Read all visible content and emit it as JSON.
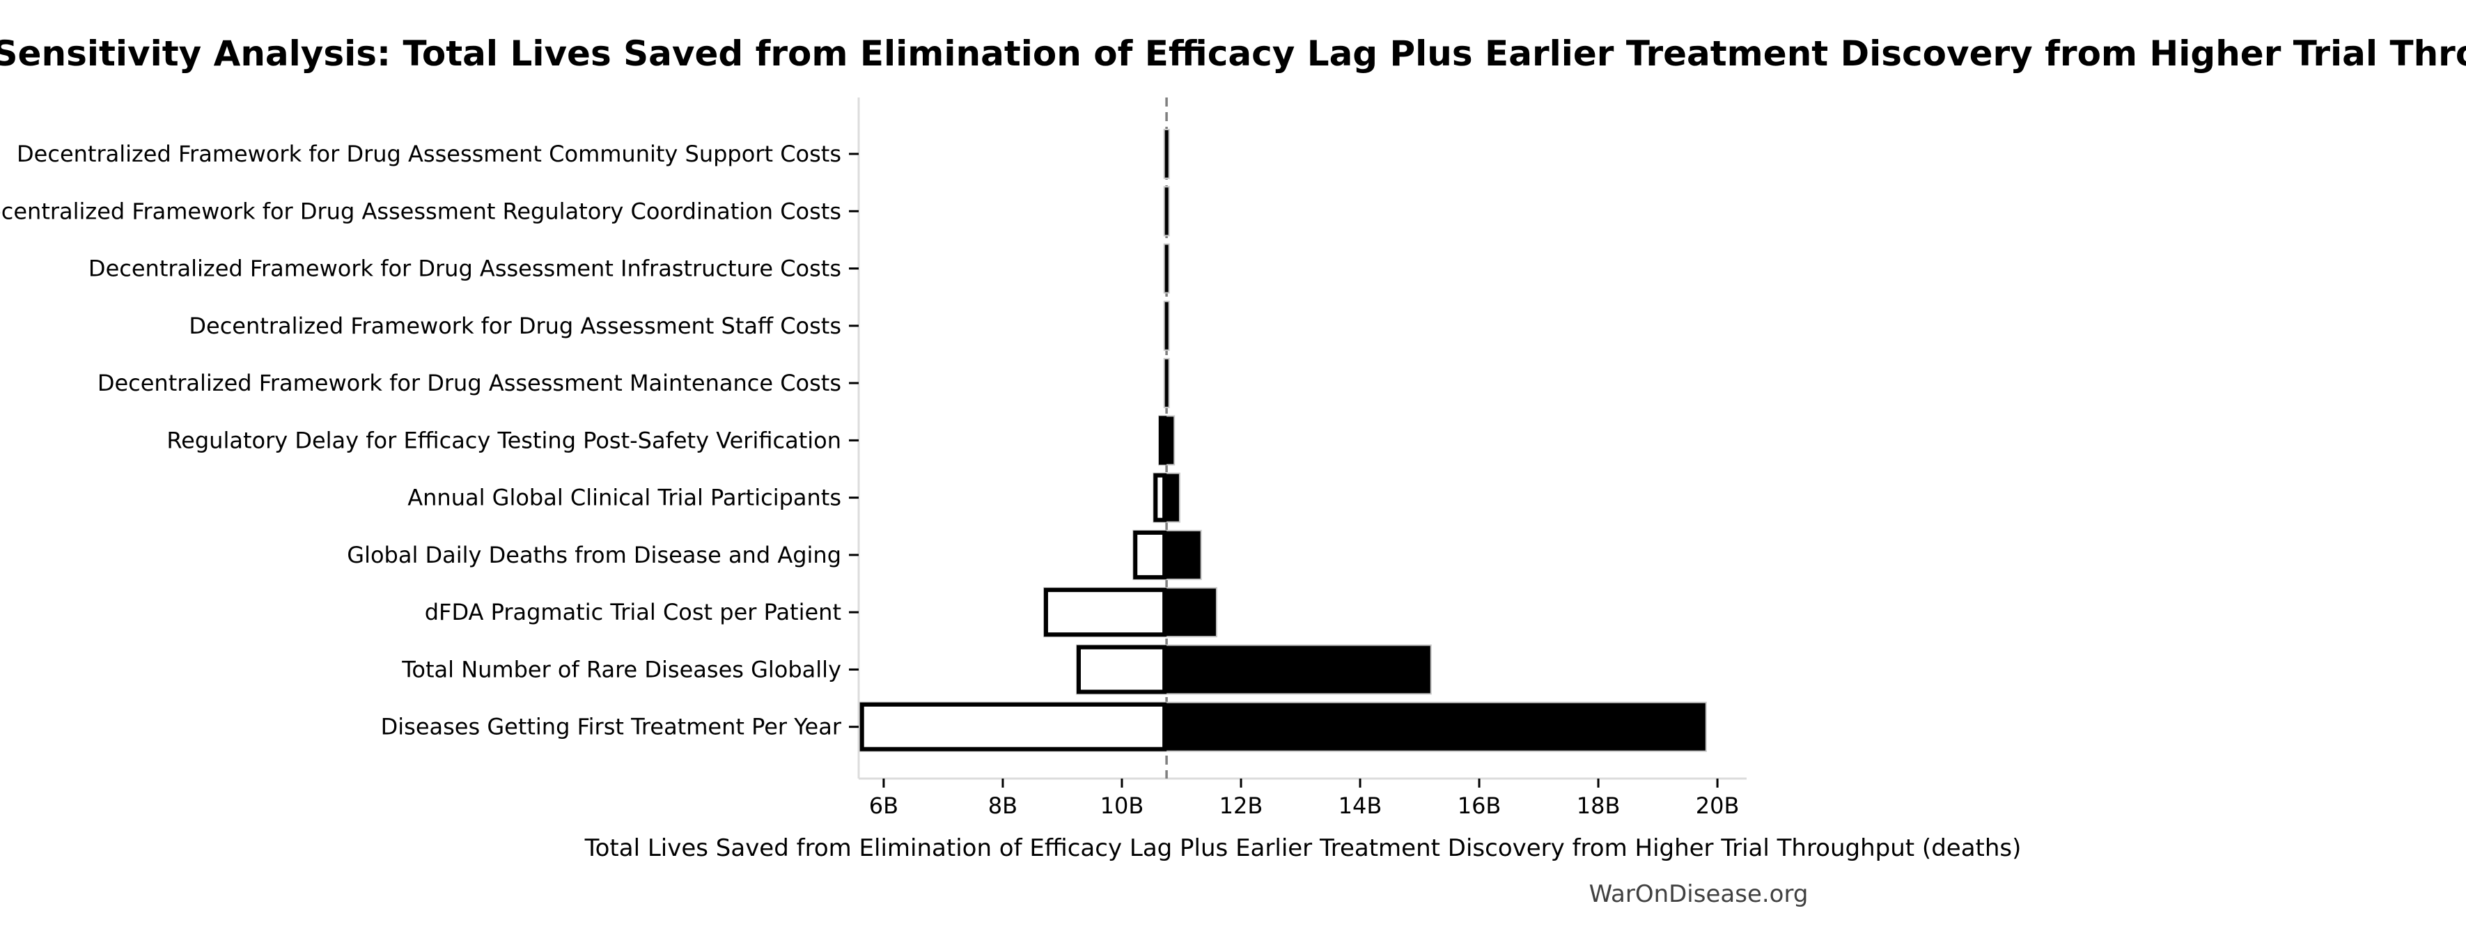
{
  "title": "Sensitivity Analysis: Total Lives Saved from Elimination of Efficacy Lag Plus Earlier Treatment Discovery from Higher Trial Throughput",
  "watermark": "WarOnDisease.org",
  "chart_data": {
    "type": "bar",
    "subtype": "tornado-sensitivity",
    "orientation": "horizontal",
    "title": "Sensitivity Analysis: Total Lives Saved from Elimination of Efficacy Lag Plus Earlier Treatment Discovery from Higher Trial Throughput",
    "xlabel": "Total Lives Saved from Elimination of Efficacy Lag Plus Earlier Treatment Discovery from Higher Trial Throughput (deaths)",
    "unit": "billions of deaths averted",
    "grid": false,
    "legend": null,
    "baseline_value": 10.75,
    "xlim": [
      5.58,
      20.49
    ],
    "xticks": [
      6,
      8,
      10,
      12,
      14,
      16,
      18,
      20
    ],
    "xtick_labels": [
      "6B",
      "8B",
      "10B",
      "12B",
      "14B",
      "16B",
      "18B",
      "20B"
    ],
    "categories": [
      "Decentralized Framework for Drug Assessment Community Support Costs",
      "Decentralized Framework for Drug Assessment Regulatory Coordination Costs",
      "Decentralized Framework for Drug Assessment Infrastructure Costs",
      "Decentralized Framework for Drug Assessment Staff Costs",
      "Decentralized Framework for Drug Assessment Maintenance Costs",
      "Regulatory Delay for Efficacy Testing Post-Safety Verification",
      "Annual Global Clinical Trial Participants",
      "Global Daily Deaths from Disease and Aging",
      "dFDA Pragmatic Trial Cost per Patient",
      "Total Number of Rare Diseases Globally",
      "Diseases Getting First Treatment Per Year"
    ],
    "series": [
      {
        "name": "low_estimate",
        "values": [
          10.71,
          10.71,
          10.71,
          10.71,
          10.71,
          10.62,
          10.53,
          10.19,
          8.69,
          9.24,
          5.6
        ]
      },
      {
        "name": "high_estimate",
        "values": [
          10.79,
          10.79,
          10.79,
          10.79,
          10.79,
          10.88,
          10.97,
          11.33,
          11.59,
          15.19,
          19.81
        ]
      }
    ],
    "colors": {
      "bar_high_fill": "#000000",
      "bar_low_fill": "#ffffff",
      "bar_low_edge": "#000000",
      "bar_outline": "#c8c8c8",
      "baseline_line": "#7f7f7f",
      "spine": "#dcdcdc",
      "tick": "#000000",
      "text": "#000000",
      "watermark_text": "#404040"
    }
  }
}
